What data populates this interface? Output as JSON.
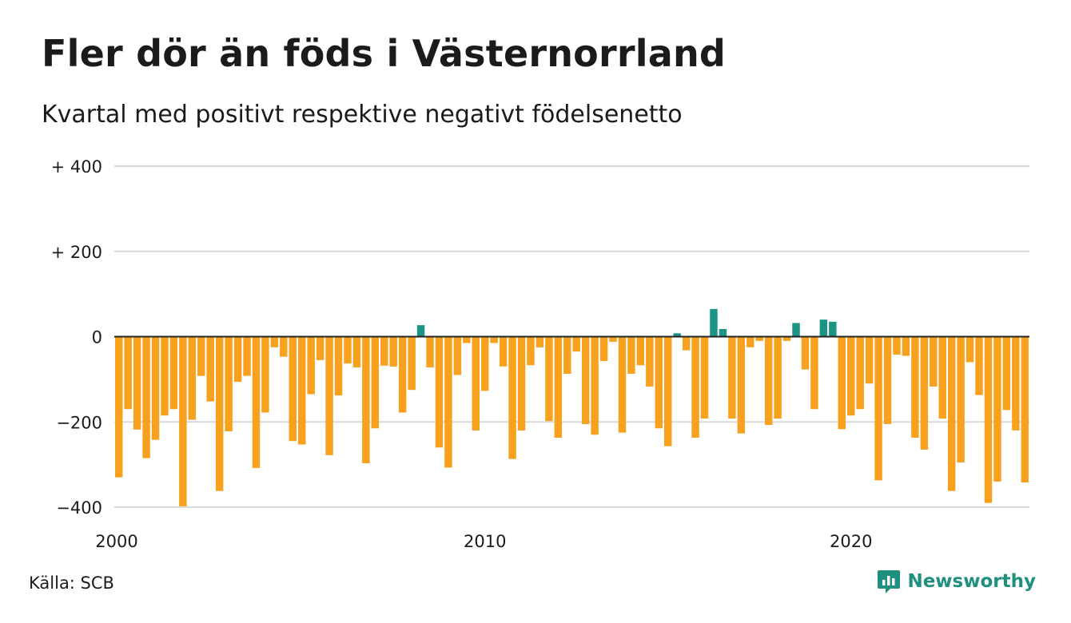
{
  "title": "Fler dör än föds i Västernorrland",
  "subtitle": "Kvartal med positivt respektive negativt födelsenetto",
  "source": "Källa: SCB",
  "brand": {
    "name": "Newsworthy",
    "icon": "newsworthy-logo-icon"
  },
  "colors": {
    "positive": "#1b9485",
    "negative": "#f7a11e",
    "grid": "#d9d9d9",
    "zero": "#222222"
  },
  "chart_data": {
    "type": "bar",
    "title": "Fler dör än föds i Västernorrland",
    "subtitle": "Kvartal med positivt respektive negativt födelsenetto",
    "xlabel": "",
    "ylabel": "",
    "ylim": [
      -400,
      400
    ],
    "grid": true,
    "y_ticks": [
      {
        "value": 400,
        "label": "+ 400"
      },
      {
        "value": 200,
        "label": "+ 200"
      },
      {
        "value": 0,
        "label": "0"
      },
      {
        "value": -200,
        "label": "−200"
      },
      {
        "value": -400,
        "label": "−400"
      }
    ],
    "x_ticks": [
      {
        "index": 0,
        "label": "2000"
      },
      {
        "index": 40,
        "label": "2010"
      },
      {
        "index": 80,
        "label": "2020"
      }
    ],
    "start_period": "2000 Q1",
    "values": [
      -330,
      -170,
      -218,
      -285,
      -242,
      -185,
      -170,
      -398,
      -195,
      -92,
      -152,
      -362,
      -222,
      -106,
      -92,
      -308,
      -178,
      -25,
      -47,
      -245,
      -253,
      -135,
      -55,
      -278,
      -138,
      -63,
      -72,
      -297,
      -215,
      -68,
      -70,
      -178,
      -125,
      27,
      -72,
      -260,
      -307,
      -90,
      -15,
      -220,
      -127,
      -15,
      -70,
      -287,
      -220,
      -67,
      -25,
      -198,
      -237,
      -87,
      -35,
      -205,
      -230,
      -57,
      -12,
      -225,
      -87,
      -67,
      -117,
      -215,
      -257,
      8,
      -32,
      -237,
      -192,
      65,
      18,
      -192,
      -227,
      -25,
      -10,
      -207,
      -192,
      -10,
      32,
      -77,
      -170,
      40,
      35,
      -217,
      -185,
      -170,
      -110,
      -337,
      -205,
      -42,
      -45,
      -237,
      -265,
      -117,
      -192,
      -362,
      -295,
      -60,
      -137,
      -390,
      -340,
      -172,
      -220,
      -342
    ]
  }
}
